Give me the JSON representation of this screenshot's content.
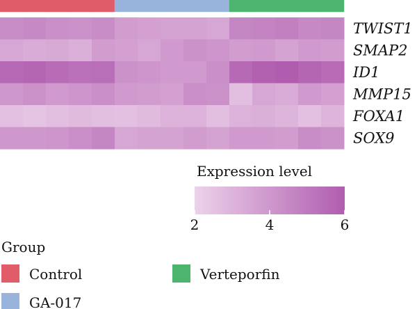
{
  "chart_data": {
    "type": "heatmap",
    "genes": [
      "TWIST1",
      "SMAP2",
      "ID1",
      "MMP15",
      "FOXA1",
      "SOX9"
    ],
    "columns": [
      "Control",
      "Control",
      "Control",
      "Control",
      "Control",
      "GA-017",
      "GA-017",
      "GA-017",
      "GA-017",
      "GA-017",
      "Verteporfin",
      "Verteporfin",
      "Verteporfin",
      "Verteporfin",
      "Verteporfin"
    ],
    "values": [
      [
        4.4,
        4.5,
        4.3,
        4.2,
        4.4,
        3.8,
        3.7,
        3.6,
        3.6,
        3.5,
        4.6,
        4.7,
        4.8,
        4.5,
        4.6
      ],
      [
        3.5,
        3.3,
        3.4,
        3.2,
        3.8,
        3.7,
        3.5,
        3.9,
        4.2,
        4.1,
        3.8,
        3.9,
        3.6,
        3.9,
        3.8
      ],
      [
        5.6,
        5.7,
        5.5,
        5.3,
        5.4,
        4.2,
        4.1,
        3.9,
        3.9,
        4.3,
        5.6,
        5.9,
        6.0,
        5.7,
        5.5
      ],
      [
        4.0,
        4.2,
        3.9,
        4.1,
        4.3,
        3.9,
        3.8,
        3.7,
        4.3,
        4.2,
        2.7,
        3.5,
        3.3,
        3.9,
        3.7
      ],
      [
        2.6,
        2.5,
        2.7,
        2.8,
        2.7,
        2.6,
        2.8,
        3.1,
        3.1,
        2.7,
        3.1,
        3.2,
        3.0,
        2.6,
        3.0
      ],
      [
        4.0,
        4.0,
        4.1,
        4.3,
        4.6,
        3.5,
        3.6,
        3.6,
        3.8,
        3.6,
        3.9,
        3.9,
        3.8,
        4.4,
        4.2
      ]
    ],
    "groups": [
      {
        "name": "Control",
        "color": "#e05c68"
      },
      {
        "name": "GA-017",
        "color": "#98b4dd"
      },
      {
        "name": "Verteporfin",
        "color": "#4db46e"
      }
    ],
    "color_scale": {
      "title": "Expression level",
      "min": 2,
      "max": 6,
      "ticks": [
        2,
        4,
        6
      ],
      "low_color": "#ecd2ea",
      "high_color": "#b05daf"
    },
    "legend": {
      "title": "Group",
      "placement": "bottom-left"
    }
  }
}
